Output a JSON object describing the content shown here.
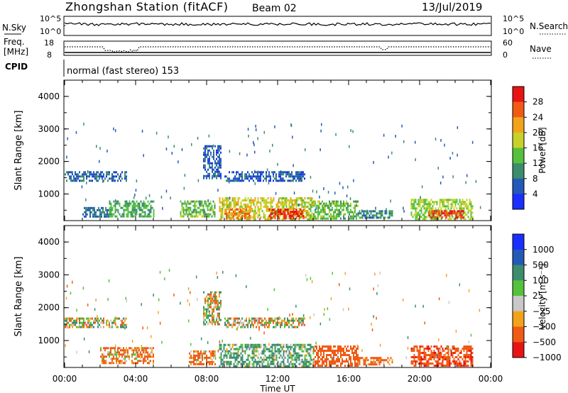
{
  "header": {
    "station": "Zhongshan Station (fitACF)",
    "beam": "Beam 02",
    "date": "13/Jul/2019"
  },
  "top_panels": {
    "nsky_label": "N.Sky",
    "nsearch_label": "N.Search",
    "nsky_ticks": [
      "10^5",
      "10^0"
    ],
    "nsearch_ticks": [
      "10^5",
      "10^0"
    ],
    "freq_label_1": "Freq.",
    "freq_label_2": "[MHz]",
    "freq_ticks": [
      "18",
      "8"
    ],
    "nave_label": "Nave",
    "nave_ticks": [
      "60",
      "0"
    ],
    "cpid_label": "CPID",
    "cpid_text": "normal (fast stereo) 153"
  },
  "chart_data": [
    {
      "type": "heatmap",
      "title": "",
      "xlabel": "Time UT",
      "ylabel": "Slant Range [km]",
      "xlim": [
        0,
        24
      ],
      "ylim": [
        180,
        4500
      ],
      "x_ticks": [
        "00:00",
        "04:00",
        "08:00",
        "12:00",
        "16:00",
        "20:00",
        "00:00"
      ],
      "y_ticks": [
        "1000",
        "2000",
        "3000",
        "4000"
      ],
      "colorbar": {
        "label": "Power [dB]",
        "ticks": [
          "4",
          "8",
          "12",
          "16",
          "20",
          "24",
          "28"
        ],
        "range": [
          0,
          30
        ],
        "colors": [
          "#1a2eff",
          "#2459b8",
          "#3b8d6e",
          "#56c13c",
          "#c8d12a",
          "#f2a31c",
          "#f05a14",
          "#e81414"
        ]
      },
      "regions": [
        {
          "t0": 0.0,
          "t1": 3.5,
          "r0": 1400,
          "r1": 1700,
          "value": 7
        },
        {
          "t0": 1.0,
          "t1": 2.5,
          "r0": 300,
          "r1": 600,
          "value": 8
        },
        {
          "t0": 2.5,
          "t1": 5.0,
          "r0": 300,
          "r1": 800,
          "value": 12
        },
        {
          "t0": 6.5,
          "t1": 8.5,
          "r0": 300,
          "r1": 800,
          "value": 14
        },
        {
          "t0": 7.8,
          "t1": 8.8,
          "r0": 1500,
          "r1": 2500,
          "value": 6
        },
        {
          "t0": 9.0,
          "t1": 13.5,
          "r0": 1400,
          "r1": 1700,
          "value": 6
        },
        {
          "t0": 8.7,
          "t1": 14.0,
          "r0": 200,
          "r1": 900,
          "value": 18
        },
        {
          "t0": 9.0,
          "t1": 10.5,
          "r0": 250,
          "r1": 550,
          "value": 24
        },
        {
          "t0": 11.5,
          "t1": 13.5,
          "r0": 250,
          "r1": 550,
          "value": 28
        },
        {
          "t0": 14.0,
          "t1": 16.5,
          "r0": 250,
          "r1": 800,
          "value": 14
        },
        {
          "t0": 16.5,
          "t1": 18.5,
          "r0": 250,
          "r1": 500,
          "value": 9
        },
        {
          "t0": 19.5,
          "t1": 23.0,
          "r0": 250,
          "r1": 850,
          "value": 16
        },
        {
          "t0": 20.5,
          "t1": 22.5,
          "r0": 250,
          "r1": 500,
          "value": 28
        }
      ]
    },
    {
      "type": "heatmap",
      "title": "",
      "xlabel": "Time UT",
      "ylabel": "Slant Range [km]",
      "xlim": [
        0,
        24
      ],
      "ylim": [
        180,
        4500
      ],
      "x_ticks": [
        "00:00",
        "04:00",
        "08:00",
        "12:00",
        "16:00",
        "20:00",
        "00:00"
      ],
      "y_ticks": [
        "1000",
        "2000",
        "3000",
        "4000"
      ],
      "colorbar": {
        "label": "Velocity [m s⁻¹]",
        "ticks": [
          "1000",
          "500",
          "100",
          "25",
          "−25",
          "−100",
          "−500",
          "−1000"
        ],
        "range": [
          -1200,
          1200
        ],
        "colors": [
          "#1a2eff",
          "#2459b8",
          "#3b8d6e",
          "#56c13c",
          "#c8c8c8",
          "#f2a31c",
          "#f05a14",
          "#e81414"
        ]
      },
      "regions": [
        {
          "t0": 0.0,
          "t1": 3.5,
          "r0": 1400,
          "r1": 1700,
          "value": 5
        },
        {
          "t0": 2.0,
          "t1": 5.0,
          "r0": 300,
          "r1": 800,
          "value": -150
        },
        {
          "t0": 7.8,
          "t1": 8.8,
          "r0": 1500,
          "r1": 2500,
          "value": 10
        },
        {
          "t0": 7.0,
          "t1": 8.5,
          "r0": 300,
          "r1": 700,
          "value": -150
        },
        {
          "t0": 9.0,
          "t1": 13.5,
          "r0": 1400,
          "r1": 1700,
          "value": 0
        },
        {
          "t0": 8.7,
          "t1": 14.0,
          "r0": 250,
          "r1": 900,
          "value": 150
        },
        {
          "t0": 14.0,
          "t1": 16.5,
          "r0": 250,
          "r1": 850,
          "value": -300
        },
        {
          "t0": 16.5,
          "t1": 18.5,
          "r0": 250,
          "r1": 500,
          "value": -200
        },
        {
          "t0": 19.5,
          "t1": 23.0,
          "r0": 250,
          "r1": 850,
          "value": -400
        }
      ]
    }
  ],
  "x_axis_label": "Time UT"
}
